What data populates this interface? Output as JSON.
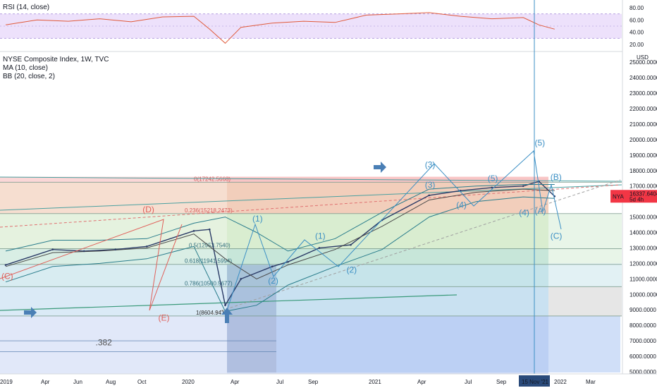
{
  "panes": {
    "rsi_label": "RSI (14, close)",
    "main_title": "NYSE Composite Index, 1W, TVC",
    "ma_label": "MA (10, close)",
    "bb_label": "BB (20, close, 2)"
  },
  "price_axis": {
    "currency": "USD",
    "badge_symbol": "NYA",
    "badge_price": "16337.6404",
    "badge_countdown": "5d 4h"
  },
  "time_axis": {
    "crosshair_label": "15 Nov '21"
  },
  "colors": {
    "price_line": "#2a3a66",
    "ma_line": "#4a4a4a",
    "bb_line": "#2a7d8c",
    "rsi_line": "#e05a3a",
    "wave_blue": "#3b8fc4",
    "wave_red": "#e0605a",
    "crosshair": "#3b8fc4",
    "arrow_blue": "#4a7fb5",
    "badge_bg": "#f23645"
  },
  "chart_data": [
    {
      "type": "line",
      "pane": "rsi",
      "title": "RSI (14, close)",
      "ylim": [
        15,
        82
      ],
      "yticks": [
        "80.00",
        "60.00",
        "40.00",
        "20.00"
      ],
      "bands": [
        30,
        70
      ],
      "series": [
        {
          "name": "RSI",
          "x": [
            "2019-01",
            "2019-03",
            "2019-05",
            "2019-07",
            "2019-09",
            "2019-11",
            "2020-01",
            "2020-02",
            "2020-03",
            "2020-04",
            "2020-06",
            "2020-08",
            "2020-10",
            "2020-12",
            "2021-02",
            "2021-04",
            "2021-06",
            "2021-08",
            "2021-10",
            "2021-11",
            "2021-12"
          ],
          "values": [
            52,
            60,
            58,
            62,
            57,
            65,
            66,
            45,
            22,
            48,
            55,
            58,
            56,
            68,
            70,
            72,
            66,
            62,
            64,
            52,
            45
          ]
        }
      ]
    },
    {
      "type": "line",
      "pane": "price",
      "title": "NYSE Composite Index, 1W, TVC",
      "ylim": [
        4700,
        26200
      ],
      "yticks": [
        "25000.0000",
        "24000.0000",
        "23000.0000",
        "22000.0000",
        "21000.0000",
        "20000.0000",
        "19000.0000",
        "18000.0000",
        "17000.0000",
        "15000.0000",
        "14000.0000",
        "13000.0000",
        "12000.0000",
        "11000.0000",
        "10000.0000",
        "9000.0000",
        "8000.0000",
        "7000.0000",
        "6000.0000",
        "5000.0000"
      ],
      "xticks": [
        "2019",
        "Apr",
        "Jun",
        "Aug",
        "Oct",
        "2020",
        "Apr",
        "Jul",
        "Sep",
        "2021",
        "Apr",
        "Jul",
        "Sep",
        "2022",
        "Mar"
      ],
      "series": [
        {
          "name": "NYSE Composite Index",
          "x": [
            "2019-01",
            "2019-04",
            "2019-06",
            "2019-08",
            "2019-10",
            "2020-01",
            "2020-02",
            "2020-03",
            "2020-04",
            "2020-06",
            "2020-07",
            "2020-09",
            "2020-11",
            "2021-01",
            "2021-04",
            "2021-06",
            "2021-08",
            "2021-10",
            "2021-11",
            "2021-12"
          ],
          "values": [
            11900,
            12900,
            12800,
            12900,
            13100,
            14100,
            14200,
            9300,
            11000,
            11800,
            12100,
            13000,
            13200,
            14800,
            16400,
            16700,
            16900,
            17000,
            17300,
            16337
          ]
        },
        {
          "name": "MA (10, close)",
          "x": [
            "2019-01",
            "2019-04",
            "2019-07",
            "2019-10",
            "2020-01",
            "2020-03",
            "2020-05",
            "2020-07",
            "2020-10",
            "2021-01",
            "2021-04",
            "2021-07",
            "2021-10",
            "2021-12"
          ],
          "values": [
            11800,
            12700,
            12800,
            13000,
            13900,
            12300,
            11000,
            11900,
            12900,
            14400,
            16100,
            16600,
            16800,
            16700
          ]
        },
        {
          "name": "BB upper",
          "x": [
            "2019-01",
            "2019-04",
            "2019-07",
            "2019-10",
            "2020-01",
            "2020-03",
            "2020-05",
            "2020-07",
            "2020-10",
            "2021-01",
            "2021-04",
            "2021-07",
            "2021-10",
            "2021-12"
          ],
          "values": [
            12800,
            13500,
            13500,
            13600,
            14600,
            15000,
            14000,
            12800,
            13600,
            15300,
            16800,
            17000,
            17100,
            17100
          ]
        },
        {
          "name": "BB lower",
          "x": [
            "2019-01",
            "2019-04",
            "2019-07",
            "2019-10",
            "2020-01",
            "2020-03",
            "2020-05",
            "2020-07",
            "2020-10",
            "2021-01",
            "2021-04",
            "2021-07",
            "2021-10",
            "2021-12"
          ],
          "values": [
            10800,
            11800,
            12000,
            12300,
            13100,
            8900,
            9300,
            10600,
            11800,
            12900,
            15000,
            16000,
            16300,
            16200
          ]
        }
      ],
      "fib_levels": [
        {
          "label": "0(17242.5668)",
          "value": 17242.5668
        },
        {
          "label": "0.236(15218.2473)",
          "value": 15218.2473
        },
        {
          "label": "0.5(12953.7540)",
          "value": 12953.754
        },
        {
          "label": "0.618(11941.5994)",
          "value": 11941.5994
        },
        {
          "label": "0.786(10500.5677)",
          "value": 10500.5677
        },
        {
          "label": "1(8604.9410)",
          "value": 8604.941
        }
      ],
      "annotations": [
        {
          "text": "(3)",
          "x": "2021-04",
          "y": 18200,
          "color": "blue"
        },
        {
          "text": "(3)",
          "x": "2021-04",
          "y": 16900,
          "color": "blue"
        },
        {
          "text": "(5)",
          "x": "2021-08",
          "y": 17300,
          "color": "blue"
        },
        {
          "text": "(5)",
          "x": "2021-11",
          "y": 19600,
          "color": "blue"
        },
        {
          "text": "(B)",
          "x": "2021-12",
          "y": 17400,
          "color": "blue"
        },
        {
          "text": "(4)",
          "x": "2021-06",
          "y": 15600,
          "color": "blue"
        },
        {
          "text": "(4)",
          "x": "2021-10",
          "y": 15100,
          "color": "blue"
        },
        {
          "text": "(A)",
          "x": "2021-11",
          "y": 15200,
          "color": "blue"
        },
        {
          "text": "(C)",
          "x": "2021-12",
          "y": 13600,
          "color": "blue"
        },
        {
          "text": "(1)",
          "x": "2020-05",
          "y": 14700,
          "color": "blue"
        },
        {
          "text": "(1)",
          "x": "2020-09",
          "y": 13600,
          "color": "blue"
        },
        {
          "text": "(2)",
          "x": "2020-06",
          "y": 10700,
          "color": "blue"
        },
        {
          "text": "(2)",
          "x": "2020-11",
          "y": 11400,
          "color": "blue"
        },
        {
          "text": "(D)",
          "x": "2019-10",
          "y": 15300,
          "color": "red"
        },
        {
          "text": "(E)",
          "x": "2019-11",
          "y": 8300,
          "color": "red"
        },
        {
          "text": "(C)",
          "x": "2019-01",
          "y": 11000,
          "color": "red"
        },
        {
          "text": ".382",
          "x": "2019-07",
          "y": 6700,
          "color": "gray"
        }
      ]
    }
  ]
}
